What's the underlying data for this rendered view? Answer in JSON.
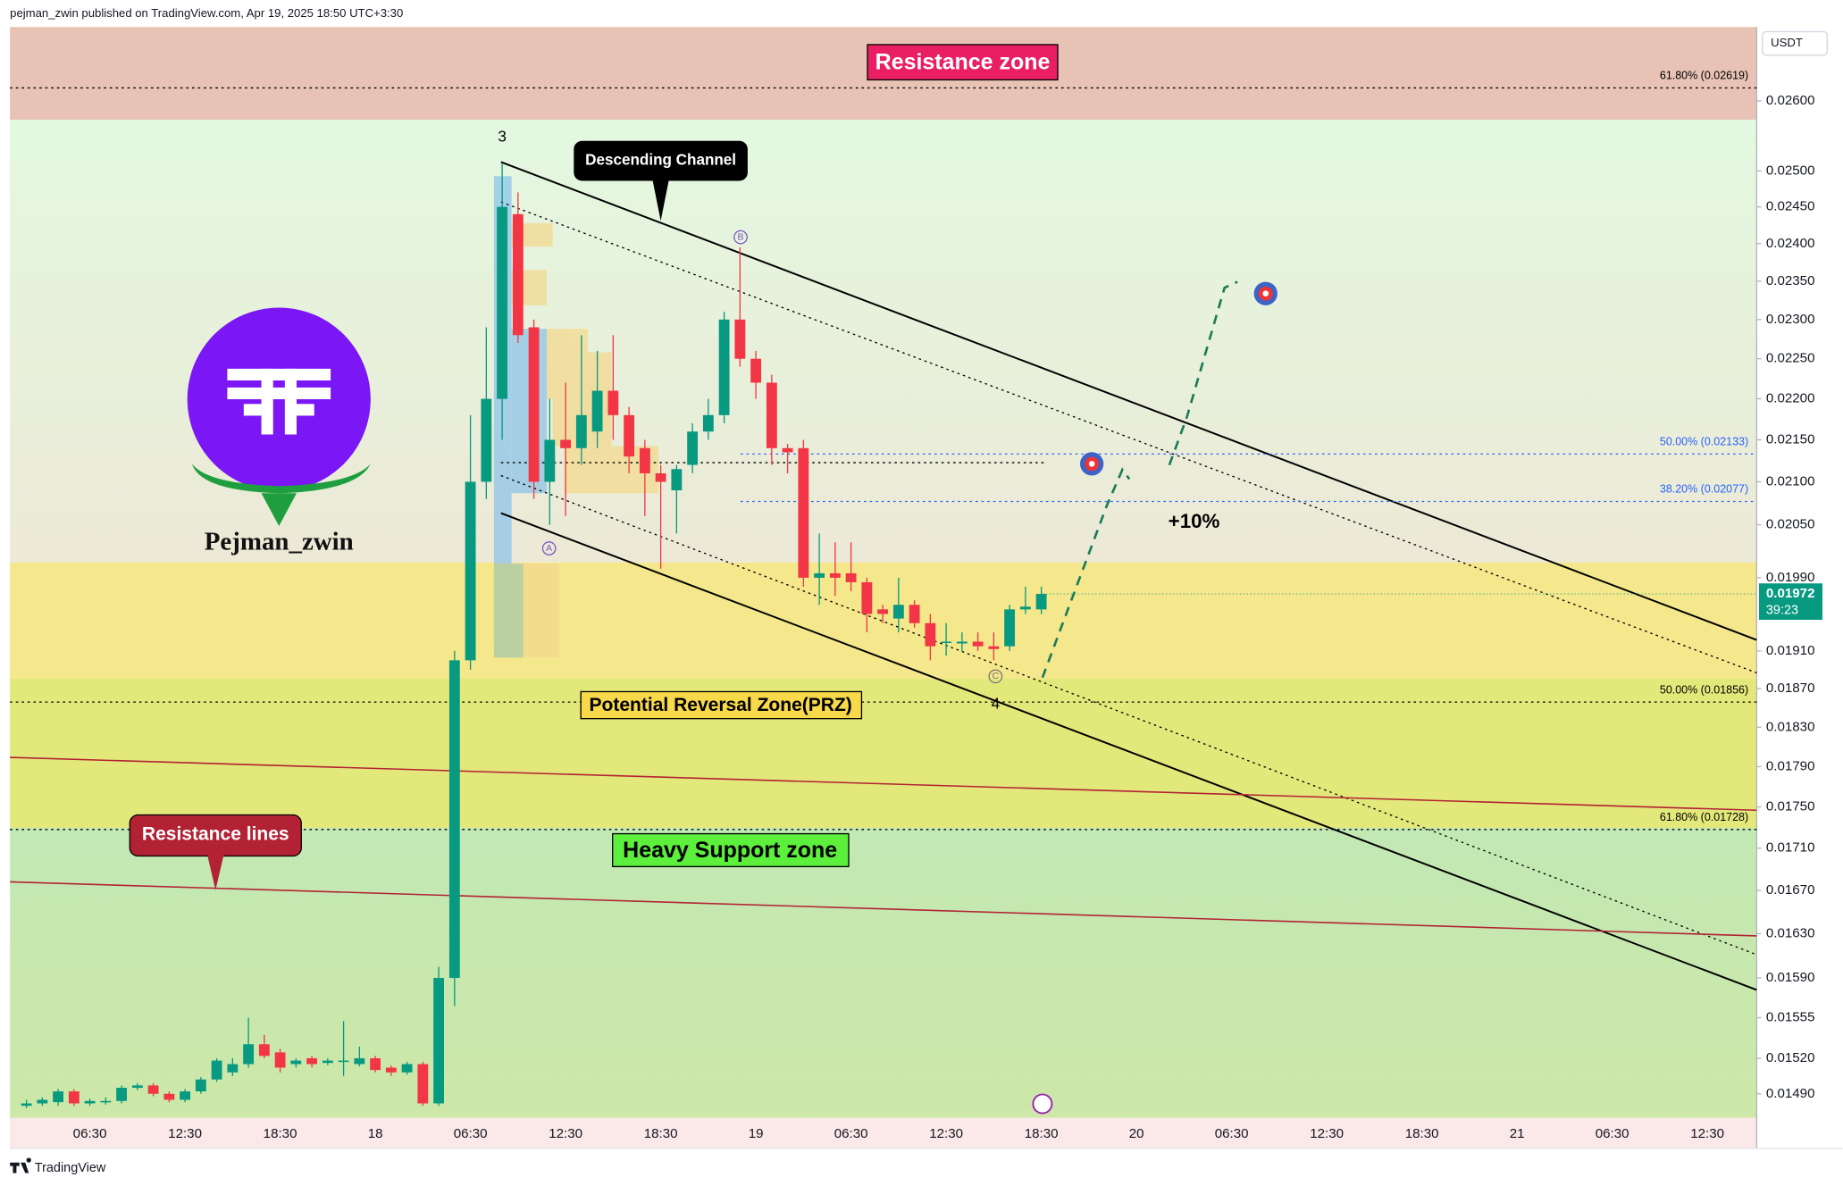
{
  "header": {
    "published": "pejman_zwin published on TradingView.com, Apr 19, 2025 18:50 UTC+3:30",
    "currency": "USDT",
    "footer": "TradingView"
  },
  "annotations": {
    "resistance_zone": "Resistance zone",
    "channel": "Descending Channel",
    "prz": "Potential Reversal Zone(PRZ)",
    "support": "Heavy Support zone",
    "resistance_lines": "Resistance lines",
    "target": "+10%",
    "author": "Pejman_zwin",
    "wave_3": "3",
    "wave_4": "4",
    "wave_a": "A",
    "wave_b": "B",
    "wave_c": "C"
  },
  "chart_data": {
    "type": "candlestick",
    "log_scale": true,
    "grid": false,
    "up_color": "#089981",
    "down_color": "#f23645",
    "ylim": [
      0.0147,
      0.0271
    ],
    "yticks": [
      {
        "value": 0.026,
        "label": "0.02600"
      },
      {
        "value": 0.025,
        "label": "0.02500"
      },
      {
        "value": 0.0245,
        "label": "0.02450"
      },
      {
        "value": 0.024,
        "label": "0.02400"
      },
      {
        "value": 0.0235,
        "label": "0.02350"
      },
      {
        "value": 0.023,
        "label": "0.02300"
      },
      {
        "value": 0.0225,
        "label": "0.02250"
      },
      {
        "value": 0.022,
        "label": "0.02200"
      },
      {
        "value": 0.0215,
        "label": "0.02150"
      },
      {
        "value": 0.021,
        "label": "0.02100"
      },
      {
        "value": 0.0205,
        "label": "0.02050"
      },
      {
        "value": 0.0199,
        "label": "0.01990"
      },
      {
        "value": 0.0191,
        "label": "0.01910"
      },
      {
        "value": 0.0187,
        "label": "0.01870"
      },
      {
        "value": 0.0183,
        "label": "0.01830"
      },
      {
        "value": 0.0179,
        "label": "0.01790"
      },
      {
        "value": 0.0175,
        "label": "0.01750"
      },
      {
        "value": 0.0171,
        "label": "0.01710"
      },
      {
        "value": 0.0167,
        "label": "0.01670"
      },
      {
        "value": 0.0163,
        "label": "0.01630"
      },
      {
        "value": 0.0159,
        "label": "0.01590"
      },
      {
        "value": 0.01555,
        "label": "0.01555"
      },
      {
        "value": 0.0152,
        "label": "0.01520"
      },
      {
        "value": 0.0149,
        "label": "0.01490"
      }
    ],
    "time_labels": [
      "06:30",
      "12:30",
      "18:30",
      "18",
      "06:30",
      "12:30",
      "18:30",
      "19",
      "06:30",
      "12:30",
      "18:30",
      "20",
      "06:30",
      "12:30",
      "18:30",
      "21",
      "06:30",
      "12:30"
    ],
    "open": [
      0.0148,
      0.01482,
      0.01483,
      0.01492,
      0.01482,
      0.01484,
      0.01484,
      0.01495,
      0.01497,
      0.0149,
      0.01485,
      0.01492,
      0.01502,
      0.01508,
      0.01515,
      0.01532,
      0.01525,
      0.01515,
      0.0152,
      0.01516,
      0.01518,
      0.01515,
      0.0152,
      0.01512,
      0.01508,
      0.01515,
      0.01482,
      0.0159,
      0.019,
      0.021,
      0.022,
      0.0244,
      0.0229,
      0.021,
      0.0215,
      0.0214,
      0.0216,
      0.0221,
      0.0218,
      0.0214,
      0.0211,
      0.0209,
      0.0212,
      0.0216,
      0.0218,
      0.023,
      0.0225,
      0.0222,
      0.0214,
      0.0214,
      0.0199,
      0.01995,
      0.01995,
      0.01985,
      0.01955,
      0.01945,
      0.0196,
      0.0194,
      0.0192,
      0.01918,
      0.0192,
      0.01915,
      0.01915,
      0.01955,
      0.01955
    ],
    "high": [
      0.01485,
      0.01487,
      0.01494,
      0.01494,
      0.01486,
      0.01487,
      0.01497,
      0.01499,
      0.01499,
      0.01492,
      0.01494,
      0.01504,
      0.0152,
      0.0152,
      0.01555,
      0.0154,
      0.01528,
      0.0152,
      0.01522,
      0.0152,
      0.01552,
      0.0153,
      0.01522,
      0.01514,
      0.01517,
      0.01517,
      0.016,
      0.0191,
      0.0218,
      0.0229,
      0.0251,
      0.0247,
      0.023,
      0.022,
      0.0222,
      0.0228,
      0.0226,
      0.0228,
      0.0219,
      0.0215,
      0.0212,
      0.0212,
      0.0217,
      0.022,
      0.0231,
      0.02395,
      0.0226,
      0.0223,
      0.02145,
      0.0215,
      0.0204,
      0.0203,
      0.0203,
      0.0199,
      0.0196,
      0.0199,
      0.01965,
      0.0195,
      0.0194,
      0.0193,
      0.0193,
      0.0193,
      0.0196,
      0.0198,
      0.0198
    ],
    "low": [
      0.01478,
      0.0148,
      0.0148,
      0.0148,
      0.0148,
      0.01481,
      0.01482,
      0.01493,
      0.01488,
      0.01483,
      0.01483,
      0.0149,
      0.015,
      0.01505,
      0.01512,
      0.0152,
      0.01508,
      0.01512,
      0.01512,
      0.01514,
      0.01505,
      0.01513,
      0.01508,
      0.01505,
      0.01506,
      0.0148,
      0.0148,
      0.01565,
      0.0189,
      0.0208,
      0.0215,
      0.0227,
      0.0208,
      0.0205,
      0.0206,
      0.0212,
      0.0214,
      0.0215,
      0.0211,
      0.0206,
      0.02,
      0.0204,
      0.0211,
      0.0215,
      0.0217,
      0.0224,
      0.022,
      0.0212,
      0.0211,
      0.0198,
      0.0196,
      0.0197,
      0.01975,
      0.0193,
      0.0194,
      0.0193,
      0.01935,
      0.019,
      0.01905,
      0.0191,
      0.0191,
      0.019,
      0.0191,
      0.0195,
      0.0195
    ],
    "close": [
      0.01482,
      0.01485,
      0.01492,
      0.01482,
      0.01484,
      0.01484,
      0.01495,
      0.01497,
      0.0149,
      0.01485,
      0.01492,
      0.01502,
      0.01518,
      0.01515,
      0.01532,
      0.01522,
      0.01512,
      0.01518,
      0.01515,
      0.01518,
      0.01518,
      0.0152,
      0.0151,
      0.01508,
      0.01515,
      0.01482,
      0.0159,
      0.019,
      0.021,
      0.022,
      0.0245,
      0.0228,
      0.021,
      0.0215,
      0.0214,
      0.0218,
      0.0221,
      0.0218,
      0.0213,
      0.0211,
      0.021,
      0.02115,
      0.0216,
      0.0218,
      0.023,
      0.0225,
      0.0222,
      0.0214,
      0.02135,
      0.0199,
      0.01995,
      0.0199,
      0.01985,
      0.0195,
      0.0195,
      0.0196,
      0.0194,
      0.01915,
      0.0192,
      0.0192,
      0.01915,
      0.01912,
      0.01955,
      0.01958,
      0.01972
    ],
    "last_price": {
      "value": 0.01972,
      "label": "0.01972",
      "countdown": "39:23"
    },
    "fib_levels": [
      {
        "label": "61.80% (0.02619)",
        "value": 0.02619,
        "color": "#000000"
      },
      {
        "label": "50.00% (0.02133)",
        "value": 0.02133,
        "color": "#2962ff"
      },
      {
        "label": "38.20% (0.02077)",
        "value": 0.02077,
        "color": "#2962ff"
      },
      {
        "label": "50.00% (0.01856)",
        "value": 0.01856,
        "color": "#000000"
      },
      {
        "label": "61.80% (0.01728)",
        "value": 0.01728,
        "color": "#000000"
      }
    ]
  }
}
